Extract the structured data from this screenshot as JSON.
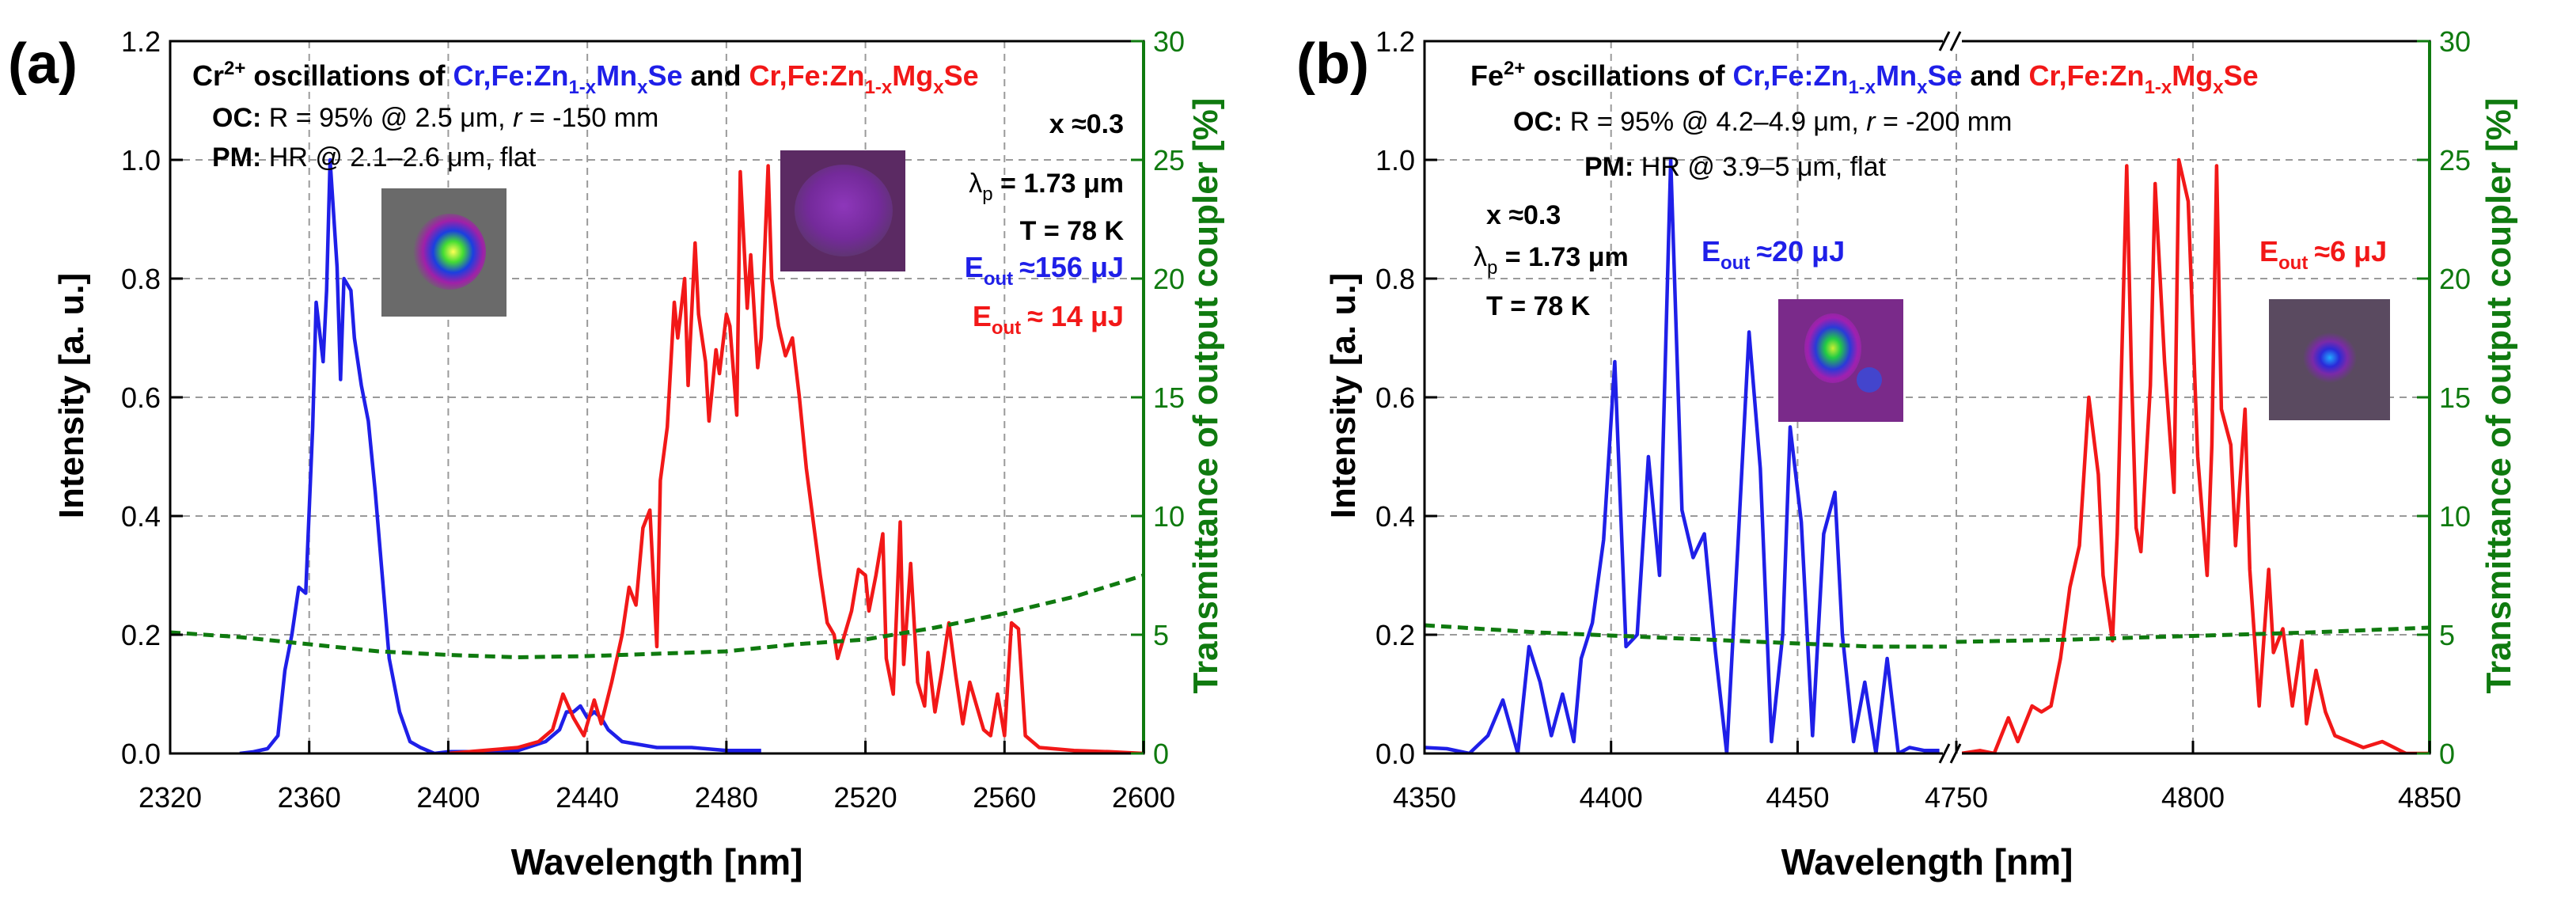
{
  "colors": {
    "blue": "#1f1fe8",
    "red": "#f21818",
    "green": "#0f7a0f",
    "black": "#000000",
    "grid": "#9a9a9a"
  },
  "chart_data": [
    {
      "panel": "(a)",
      "type": "line",
      "title_prefix": "Cr",
      "title_ion_sup": "2+",
      "title_mid": " oscillations of ",
      "title_and": " and ",
      "mat1": {
        "a": "Cr,Fe:Zn",
        "s1": "1-x",
        "b": "Mn",
        "s2": "x",
        "c": "Se"
      },
      "mat2": {
        "a": "Cr,Fe:Zn",
        "s1": "1-x",
        "b": "Mg",
        "s2": "x",
        "c": "Se"
      },
      "oc_bold": "OC:",
      "oc_text": " R = 95% @ 2.5 μm, ",
      "oc_r": "r",
      "oc_rest": " = -150 mm",
      "pm_bold": "PM:",
      "pm_text": " HR @ 2.1–2.6 μm, flat",
      "x_label": "x ≈0.3",
      "lambda": "λ",
      "lambda_sub": "p",
      "lambda_val": " = 1.73 μm",
      "temp": "T = 78 K",
      "eout": "E",
      "eout_sub": "out",
      "eout_blue_val": "≈156 μJ",
      "eout_red_val": "≈  14 μJ",
      "xlabel": "Wavelength [nm]",
      "ylabel": "Intensity [a. u.]",
      "y2label": "Transmittance of output coupler [%]",
      "xlim": [
        2320,
        2600
      ],
      "ylim": [
        0,
        1.2
      ],
      "y2lim": [
        0,
        30
      ],
      "xticks": [
        "2320",
        "2360",
        "2400",
        "2440",
        "2480",
        "2520",
        "2560",
        "2600"
      ],
      "yticks": [
        "0.0",
        "0.2",
        "0.4",
        "0.6",
        "0.8",
        "1.0",
        "1.2"
      ],
      "y2ticks": [
        "0",
        "5",
        "10",
        "15",
        "20",
        "25",
        "30"
      ],
      "series": [
        {
          "name": "Cr,Fe:Zn1-xMnxSe",
          "color": "blue",
          "x": [
            2340,
            2344,
            2348,
            2351,
            2353,
            2355,
            2357,
            2359,
            2361,
            2362,
            2364,
            2365,
            2366,
            2368,
            2369,
            2370,
            2372,
            2373,
            2375,
            2377,
            2379,
            2381,
            2383,
            2386,
            2389,
            2392,
            2396,
            2400,
            2410,
            2420,
            2428,
            2432,
            2434,
            2436,
            2438,
            2440,
            2442,
            2444,
            2446,
            2450,
            2460,
            2470,
            2480,
            2490
          ],
          "y": [
            0,
            0.003,
            0.008,
            0.03,
            0.14,
            0.2,
            0.28,
            0.27,
            0.55,
            0.76,
            0.66,
            0.78,
            1.0,
            0.82,
            0.63,
            0.8,
            0.78,
            0.7,
            0.62,
            0.56,
            0.44,
            0.3,
            0.16,
            0.07,
            0.02,
            0.01,
            0.0,
            0.003,
            0.003,
            0.005,
            0.02,
            0.04,
            0.07,
            0.07,
            0.08,
            0.06,
            0.07,
            0.06,
            0.04,
            0.02,
            0.01,
            0.01,
            0.005,
            0.005
          ]
        },
        {
          "name": "Cr,Fe:Zn1-xMgxSe",
          "color": "red",
          "x": [
            2400,
            2410,
            2420,
            2426,
            2430,
            2433,
            2436,
            2439,
            2442,
            2444,
            2447,
            2450,
            2452,
            2454,
            2456,
            2458,
            2460,
            2461,
            2463,
            2465,
            2466,
            2468,
            2469,
            2471,
            2472,
            2474,
            2475,
            2477,
            2478,
            2480,
            2481,
            2483,
            2484,
            2486,
            2487,
            2489,
            2490,
            2492,
            2493,
            2495,
            2497,
            2499,
            2501,
            2503,
            2505,
            2507,
            2509,
            2511,
            2512,
            2514,
            2516,
            2518,
            2520,
            2521,
            2523,
            2525,
            2526,
            2528,
            2530,
            2531,
            2533,
            2535,
            2537,
            2538,
            2540,
            2542,
            2544,
            2546,
            2548,
            2550,
            2552,
            2554,
            2556,
            2558,
            2560,
            2562,
            2564,
            2566,
            2570,
            2580,
            2590,
            2600
          ],
          "y": [
            0.0,
            0.005,
            0.01,
            0.02,
            0.04,
            0.1,
            0.06,
            0.03,
            0.09,
            0.05,
            0.12,
            0.2,
            0.28,
            0.25,
            0.38,
            0.41,
            0.18,
            0.46,
            0.55,
            0.76,
            0.7,
            0.8,
            0.62,
            0.86,
            0.74,
            0.66,
            0.56,
            0.68,
            0.64,
            0.74,
            0.72,
            0.57,
            0.98,
            0.75,
            0.84,
            0.65,
            0.7,
            0.99,
            0.8,
            0.72,
            0.67,
            0.7,
            0.6,
            0.48,
            0.39,
            0.3,
            0.22,
            0.2,
            0.16,
            0.2,
            0.24,
            0.31,
            0.3,
            0.24,
            0.3,
            0.37,
            0.16,
            0.1,
            0.39,
            0.15,
            0.32,
            0.12,
            0.08,
            0.17,
            0.07,
            0.14,
            0.22,
            0.13,
            0.05,
            0.12,
            0.08,
            0.04,
            0.03,
            0.1,
            0.03,
            0.22,
            0.21,
            0.03,
            0.01,
            0.005,
            0.003,
            0.0
          ]
        },
        {
          "name": "Output coupler transmittance",
          "color": "green",
          "axis": "right",
          "style": "dashed",
          "x": [
            2320,
            2340,
            2360,
            2380,
            2400,
            2420,
            2440,
            2460,
            2480,
            2500,
            2520,
            2540,
            2560,
            2580,
            2600
          ],
          "y": [
            5.1,
            4.9,
            4.6,
            4.3,
            4.15,
            4.05,
            4.1,
            4.2,
            4.3,
            4.6,
            4.8,
            5.3,
            5.9,
            6.6,
            7.5
          ]
        }
      ]
    },
    {
      "panel": "(b)",
      "type": "line",
      "title_prefix": "Fe",
      "title_ion_sup": "2+",
      "title_mid": " oscillations of ",
      "title_and": " and ",
      "mat1": {
        "a": "Cr,Fe:Zn",
        "s1": "1-x",
        "b": "Mn",
        "s2": "x",
        "c": "Se"
      },
      "mat2": {
        "a": "Cr,Fe:Zn",
        "s1": "1-x",
        "b": "Mg",
        "s2": "x",
        "c": "Se"
      },
      "oc_bold": "OC:",
      "oc_text": " R = 95% @ 4.2–4.9 μm, ",
      "oc_r": "r",
      "oc_rest": " = -200 mm",
      "pm_bold": "PM:",
      "pm_text": " HR @ 3.9–5 μm, flat",
      "x_label": "x ≈0.3",
      "lambda": "λ",
      "lambda_sub": "p",
      "lambda_val": " =  1.73 μm",
      "temp": "T = 78 K",
      "eout": "E",
      "eout_sub": "out",
      "eout_blue_val": "≈20 μJ",
      "eout_red_val": "≈6 μJ",
      "xlabel": "Wavelength [nm]",
      "ylabel": "Intensity [a. u.]",
      "y2label": "Transmittance of output coupler [%]",
      "xlim_left": [
        4350,
        4490
      ],
      "xlim_right": [
        4750,
        4850
      ],
      "ylim": [
        0,
        1.2
      ],
      "y2lim": [
        0,
        30
      ],
      "xticks": [
        "4350",
        "4400",
        "4450",
        "4750",
        "4800",
        "4850"
      ],
      "yticks": [
        "0.0",
        "0.2",
        "0.4",
        "0.6",
        "0.8",
        "1.0",
        "1.2"
      ],
      "y2ticks": [
        "0",
        "5",
        "10",
        "15",
        "20",
        "25",
        "30"
      ],
      "series": [
        {
          "name": "Cr,Fe:Zn1-xMnxSe",
          "color": "blue",
          "x": [
            4350,
            4356,
            4362,
            4367,
            4371,
            4375,
            4378,
            4381,
            4384,
            4387,
            4390,
            4392,
            4395,
            4398,
            4401,
            4404,
            4407,
            4410,
            4413,
            4416,
            4419,
            4422,
            4425,
            4428,
            4431,
            4434,
            4437,
            4440,
            4443,
            4446,
            4448,
            4451,
            4454,
            4457,
            4460,
            4462,
            4465,
            4468,
            4471,
            4474,
            4477,
            4480,
            4484,
            4488
          ],
          "y": [
            0.01,
            0.008,
            0.0,
            0.03,
            0.09,
            0.0,
            0.18,
            0.12,
            0.03,
            0.1,
            0.02,
            0.16,
            0.22,
            0.36,
            0.66,
            0.18,
            0.2,
            0.5,
            0.3,
            1.0,
            0.41,
            0.33,
            0.37,
            0.17,
            0.0,
            0.35,
            0.71,
            0.48,
            0.02,
            0.2,
            0.55,
            0.39,
            0.03,
            0.37,
            0.44,
            0.2,
            0.02,
            0.12,
            0.0,
            0.16,
            0.0,
            0.01,
            0.005,
            0.005
          ]
        },
        {
          "name": "Cr,Fe:Zn1-xMgxSe",
          "color": "red",
          "x": [
            4751,
            4755,
            4758,
            4761,
            4763,
            4766,
            4768,
            4770,
            4772,
            4774,
            4776,
            4778,
            4780,
            4781,
            4783,
            4784,
            4786,
            4787,
            4788,
            4789,
            4791,
            4792,
            4794,
            4796,
            4797,
            4799,
            4801,
            4803,
            4804,
            4805,
            4806,
            4808,
            4809,
            4811,
            4812,
            4814,
            4816,
            4817,
            4818,
            4819,
            4821,
            4823,
            4824,
            4826,
            4828,
            4830,
            4833,
            4836,
            4840,
            4845,
            4850
          ],
          "y": [
            0.0,
            0.005,
            0.0,
            0.06,
            0.02,
            0.08,
            0.07,
            0.08,
            0.16,
            0.28,
            0.35,
            0.6,
            0.47,
            0.3,
            0.19,
            0.37,
            0.99,
            0.64,
            0.38,
            0.34,
            0.62,
            0.96,
            0.66,
            0.44,
            1.0,
            0.93,
            0.5,
            0.3,
            0.52,
            0.99,
            0.58,
            0.52,
            0.35,
            0.58,
            0.31,
            0.08,
            0.31,
            0.17,
            0.19,
            0.21,
            0.08,
            0.19,
            0.05,
            0.14,
            0.07,
            0.03,
            0.02,
            0.01,
            0.02,
            0.0,
            0.0
          ]
        },
        {
          "name": "Output coupler transmittance",
          "color": "green",
          "axis": "right",
          "style": "dashed",
          "x_left": [
            4350,
            4380,
            4410,
            4440,
            4470,
            4490
          ],
          "y_left": [
            5.4,
            5.1,
            4.9,
            4.7,
            4.5,
            4.5
          ],
          "x_right": [
            4750,
            4775,
            4800,
            4825,
            4850
          ],
          "y_right": [
            4.7,
            4.8,
            4.95,
            5.1,
            5.3
          ]
        }
      ]
    }
  ]
}
